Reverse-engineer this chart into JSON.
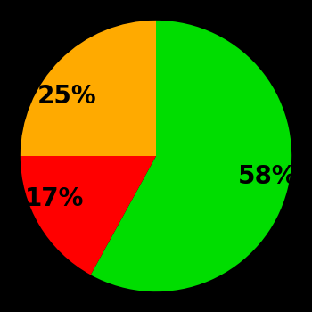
{
  "slices": [
    58,
    17,
    25
  ],
  "labels": [
    "58%",
    "17%",
    "25%"
  ],
  "colors": [
    "#00dd00",
    "#ff0000",
    "#ffaa00"
  ],
  "background_color": "#000000",
  "text_color": "#000000",
  "startangle": 90,
  "label_fontsize": 20,
  "label_fontweight": "bold",
  "labeldistance": 0.62
}
